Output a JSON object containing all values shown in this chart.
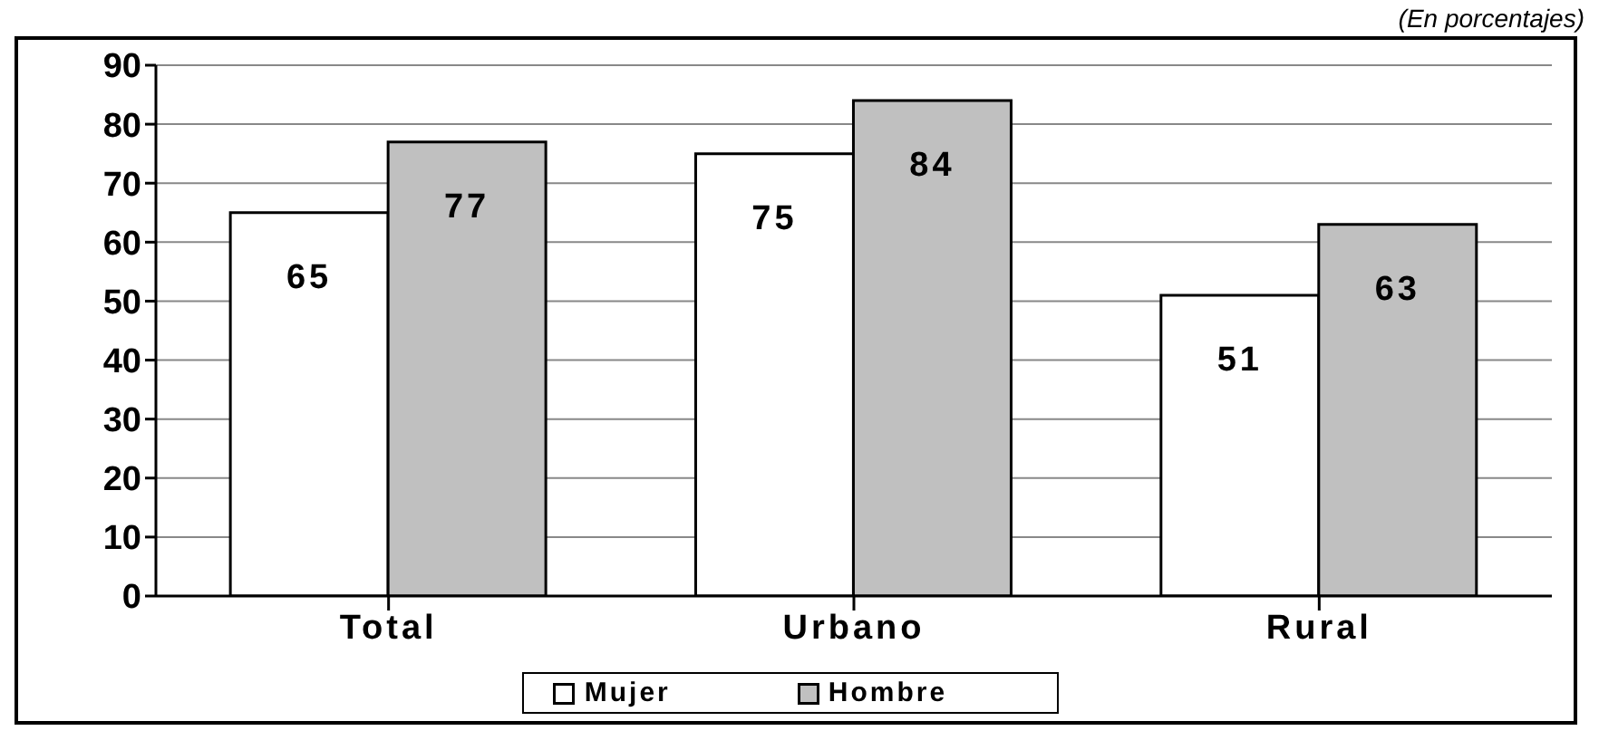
{
  "chart_data": {
    "type": "bar",
    "subtitle": "(En porcentajes)",
    "categories": [
      "Total",
      "Urbano",
      "Rural"
    ],
    "series": [
      {
        "name": "Mujer",
        "color": "#ffffff",
        "values": [
          65,
          75,
          51
        ]
      },
      {
        "name": "Hombre",
        "color": "#c0c0c0",
        "values": [
          77,
          84,
          63
        ]
      }
    ],
    "ylim": [
      0,
      90
    ],
    "yticks": [
      0,
      10,
      20,
      30,
      40,
      50,
      60,
      70,
      80,
      90
    ],
    "grid": "y",
    "legend": "bottom",
    "data_labels": true
  }
}
